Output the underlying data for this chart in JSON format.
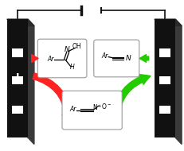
{
  "bg_color": "#ffffff",
  "arrow_red": "#ff2222",
  "arrow_green": "#22cc00",
  "battery_color": "#111111",
  "electrode_color_front": "#111111",
  "electrode_color_side": "#3a3a3a",
  "electrode_color_top": "#2a2a2a",
  "slot_color": "#ffffff",
  "box_edge_color": "#999999",
  "wire_color": "#111111"
}
